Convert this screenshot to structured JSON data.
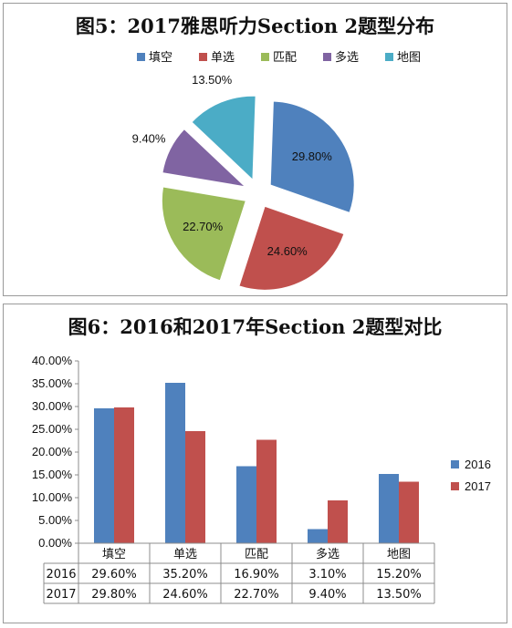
{
  "colors": {
    "blue": "#4F81BD",
    "red": "#C0504D",
    "green": "#9BBB59",
    "purple": "#8064A2",
    "teal": "#4BACC6"
  },
  "chart_data": [
    {
      "type": "pie",
      "title": "图5：2017雅思听力Section 2题型分布",
      "legend_position": "top",
      "categories": [
        "填空",
        "单选",
        "匹配",
        "多选",
        "地图"
      ],
      "values": [
        29.8,
        24.6,
        22.7,
        9.4,
        13.5
      ],
      "value_labels": [
        "29.80%",
        "24.60%",
        "22.70%",
        "9.40%",
        "13.50%"
      ],
      "colors": [
        "#4F81BD",
        "#C0504D",
        "#9BBB59",
        "#8064A2",
        "#4BACC6"
      ],
      "exploded": true
    },
    {
      "type": "bar",
      "title": "图6：2016和2017年Section 2题型对比",
      "categories": [
        "填空",
        "单选",
        "匹配",
        "多选",
        "地图"
      ],
      "series": [
        {
          "name": "2016",
          "values": [
            29.6,
            35.2,
            16.9,
            3.1,
            15.2
          ],
          "labels": [
            "29.60%",
            "35.20%",
            "16.90%",
            "3.10%",
            "15.20%"
          ],
          "color": "#4F81BD"
        },
        {
          "name": "2017",
          "values": [
            29.8,
            24.6,
            22.7,
            9.4,
            13.5
          ],
          "labels": [
            "29.80%",
            "24.60%",
            "22.70%",
            "9.40%",
            "13.50%"
          ],
          "color": "#C0504D"
        }
      ],
      "ylim": [
        0,
        40
      ],
      "yticks": [
        "0.00%",
        "5.00%",
        "10.00%",
        "15.00%",
        "20.00%",
        "25.00%",
        "30.00%",
        "35.00%",
        "40.00%"
      ],
      "grid": false,
      "legend_position": "right",
      "data_table": true
    }
  ]
}
